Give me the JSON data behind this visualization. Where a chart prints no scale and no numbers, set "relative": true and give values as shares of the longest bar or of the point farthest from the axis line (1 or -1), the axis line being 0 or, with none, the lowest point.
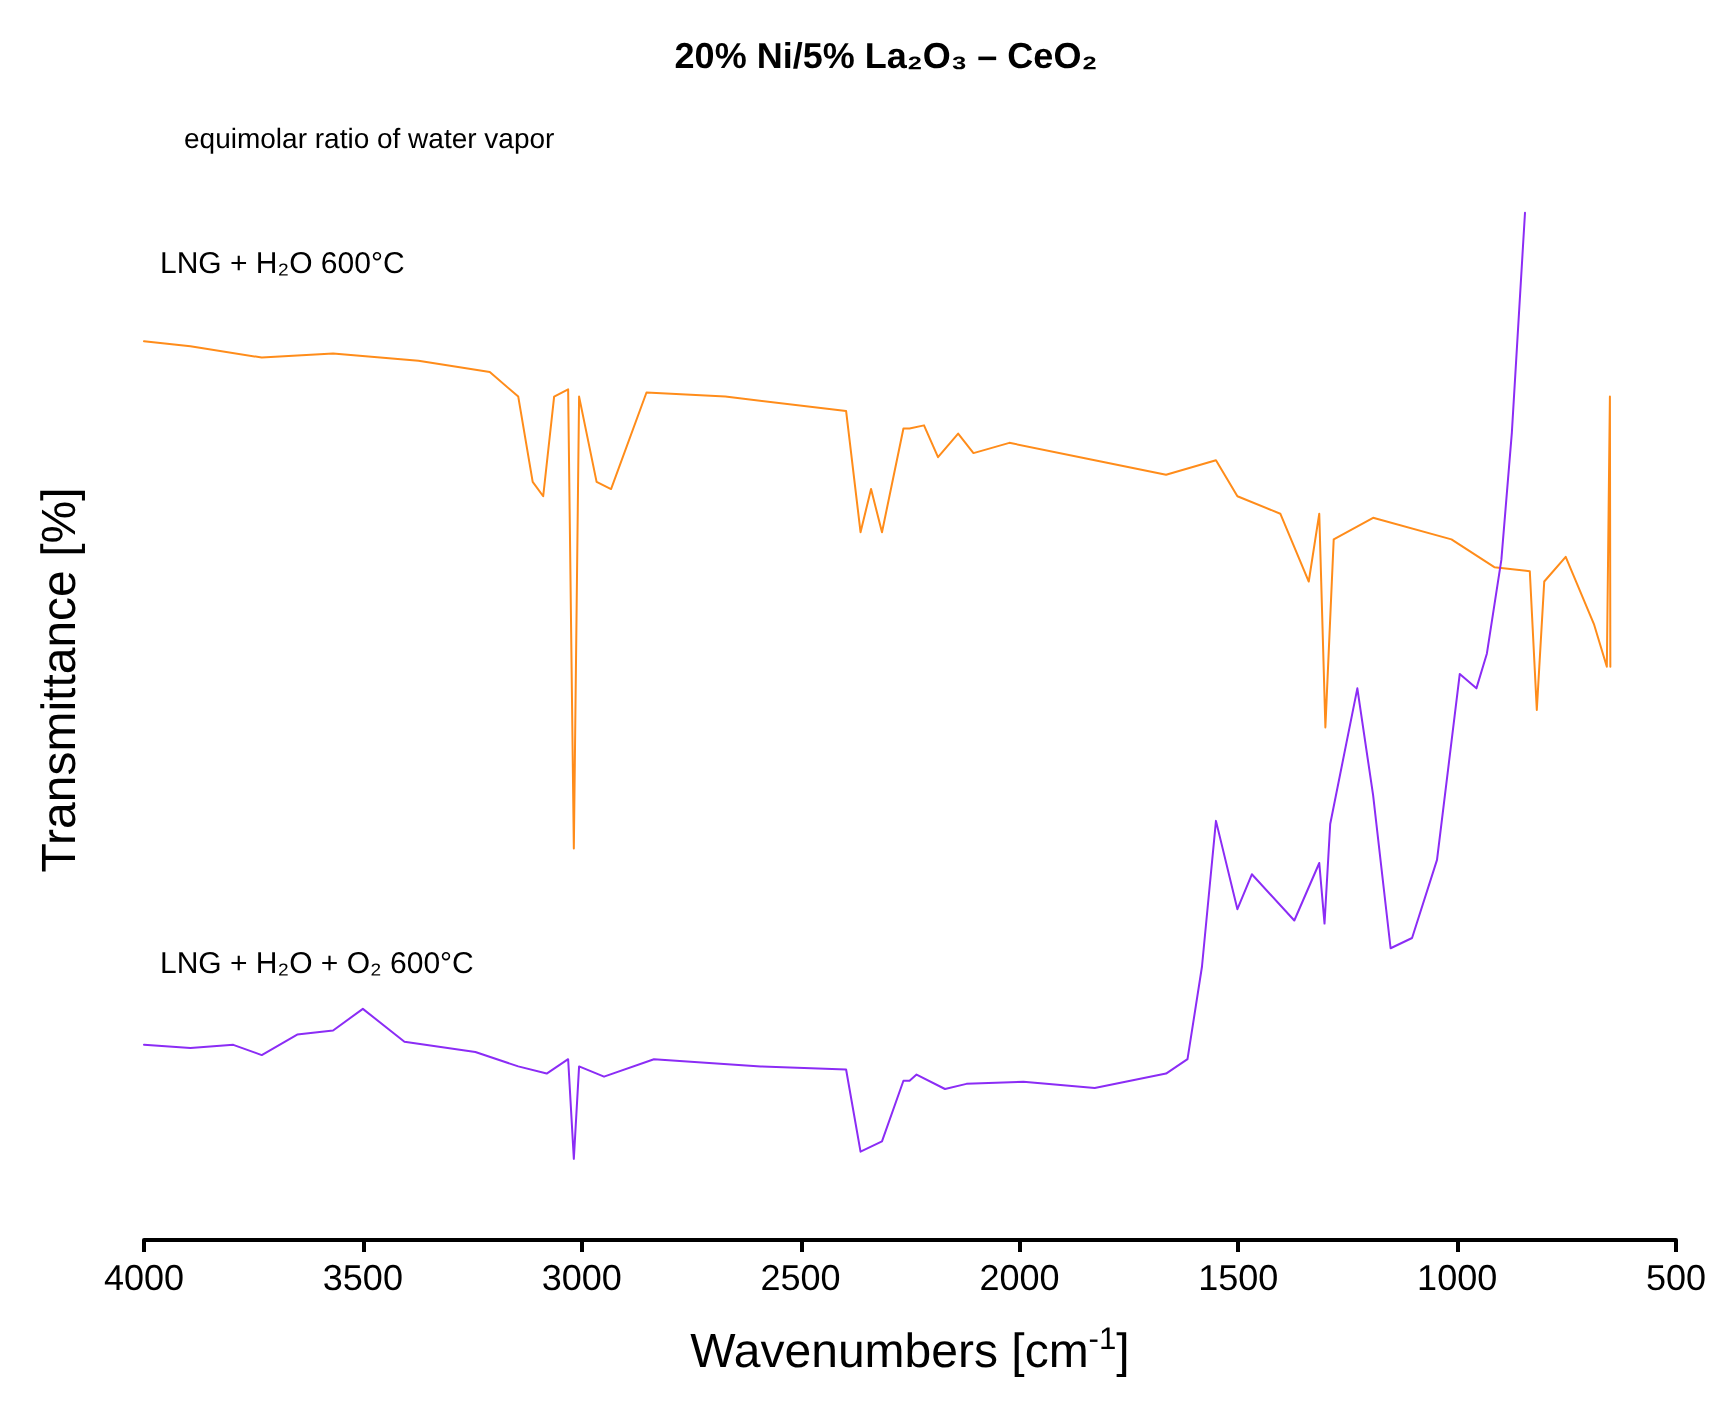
{
  "chart_data": {
    "type": "line",
    "title": "20% Ni/5% La₂O₃ – CeO₂",
    "xlabel": "Wavenumbers [cm$^{-1}$]",
    "ylabel": "Transmittance [%]",
    "relative": true,
    "xlim": [
      4000,
      500
    ],
    "xticks": [
      4000,
      3500,
      3000,
      2500,
      2000,
      1500,
      1000,
      500
    ],
    "grid": false,
    "legend": false,
    "annotations": [
      "equimolar ratio of water vapor"
    ],
    "series": [
      {
        "name": "LNG + H₂O 600°C",
        "color": "#ff8c1a",
        "x": [
          4000,
          3894,
          3731,
          3568,
          3373,
          3210,
          3145,
          3112,
          3088,
          3063,
          3031,
          3018,
          3006,
          2966,
          2933,
          2852,
          2672,
          2396,
          2363,
          2339,
          2314,
          2265,
          2251,
          2218,
          2186,
          2140,
          2105,
          2023,
          1828,
          1665,
          1551,
          1502,
          1404,
          1339,
          1315,
          1301,
          1282,
          1192,
          1013,
          915,
          834,
          818,
          801,
          752,
          687,
          658,
          651,
          650
        ],
        "values": [
          0.875,
          0.87,
          0.859,
          0.863,
          0.856,
          0.845,
          0.821,
          0.738,
          0.724,
          0.821,
          0.828,
          0.381,
          0.821,
          0.738,
          0.731,
          0.825,
          0.821,
          0.807,
          0.689,
          0.731,
          0.689,
          0.79,
          0.79,
          0.793,
          0.762,
          0.785,
          0.766,
          0.776,
          0.759,
          0.745,
          0.759,
          0.724,
          0.707,
          0.641,
          0.707,
          0.499,
          0.682,
          0.703,
          0.682,
          0.655,
          0.651,
          0.516,
          0.641,
          0.665,
          0.599,
          0.558,
          0.821,
          0.558
        ]
      },
      {
        "name": "LNG + H₂O + O₂ 600°C",
        "color": "#8b2cf5",
        "x": [
          4000,
          3894,
          3796,
          3731,
          3650,
          3568,
          3500,
          3405,
          3243,
          3145,
          3080,
          3031,
          3018,
          3006,
          2949,
          2835,
          2591,
          2396,
          2363,
          2314,
          2265,
          2251,
          2235,
          2170,
          2121,
          1991,
          1828,
          1665,
          1616,
          1583,
          1551,
          1502,
          1469,
          1372,
          1315,
          1303,
          1290,
          1228,
          1192,
          1152,
          1103,
          1046,
          994,
          956,
          932,
          899,
          875,
          845
        ],
        "values": [
          0.19,
          0.187,
          0.19,
          0.18,
          0.2,
          0.204,
          0.225,
          0.193,
          0.183,
          0.169,
          0.162,
          0.176,
          0.079,
          0.169,
          0.159,
          0.176,
          0.169,
          0.166,
          0.086,
          0.096,
          0.155,
          0.155,
          0.161,
          0.147,
          0.152,
          0.154,
          0.148,
          0.162,
          0.176,
          0.266,
          0.408,
          0.322,
          0.356,
          0.311,
          0.367,
          0.308,
          0.405,
          0.537,
          0.433,
          0.284,
          0.294,
          0.37,
          0.551,
          0.537,
          0.571,
          0.662,
          0.786,
          1.0
        ]
      }
    ]
  }
}
